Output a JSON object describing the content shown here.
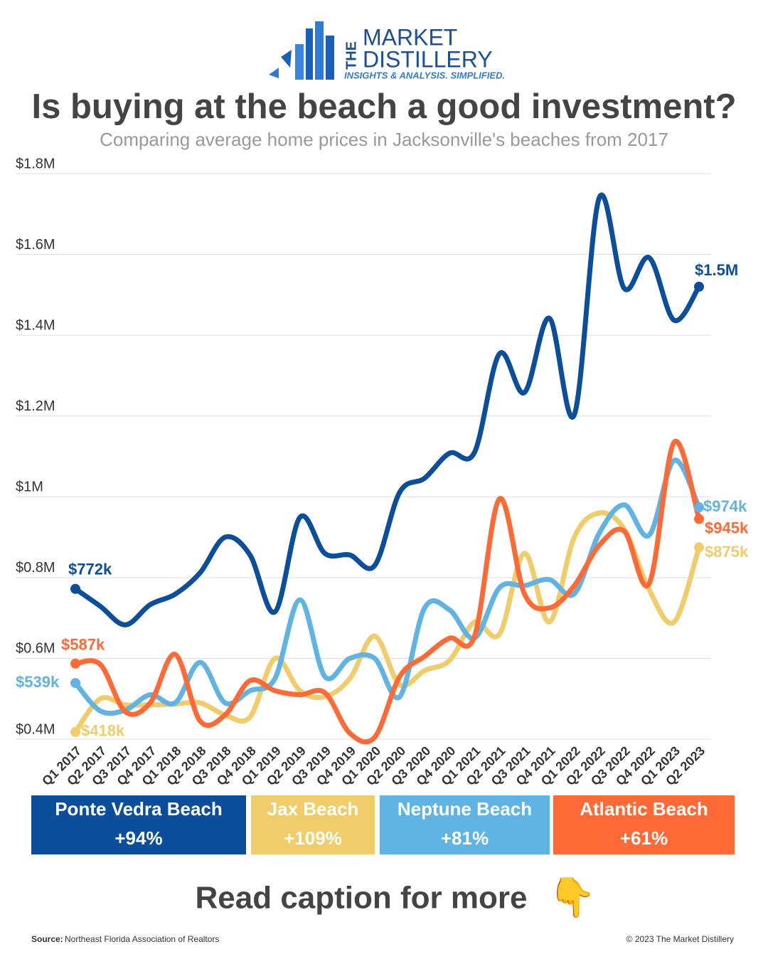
{
  "logo": {
    "the": "THE",
    "line1": "MARKET",
    "line2": "DISTILLERY",
    "tagline": "INSIGHTS & ANALYSIS. SIMPLIFIED."
  },
  "chart_data": {
    "type": "line",
    "title": "Is buying at the beach a good investment?",
    "subtitle": "Comparing average home prices in Jacksonville's beaches from 2017",
    "categories": [
      "Q1 2017",
      "Q2 2017",
      "Q3 2017",
      "Q4 2017",
      "Q1 2018",
      "Q2 2018",
      "Q3 2018",
      "Q4 2018",
      "Q1 2019",
      "Q2 2019",
      "Q3 2019",
      "Q4 2019",
      "Q1 2020",
      "Q2 2020",
      "Q3 2020",
      "Q4 2020",
      "Q1 2021",
      "Q2 2021",
      "Q3 2021",
      "Q4 2021",
      "Q1 2022",
      "Q2 2022",
      "Q3 2022",
      "Q4 2022",
      "Q1 2023",
      "Q2 2023"
    ],
    "ylim": [
      400000,
      1800000
    ],
    "yticks": [
      {
        "value": 400000,
        "label": "$0.4M"
      },
      {
        "value": 600000,
        "label": "$0.6M"
      },
      {
        "value": 800000,
        "label": "$0.8M"
      },
      {
        "value": 1000000,
        "label": "$1M"
      },
      {
        "value": 1200000,
        "label": "$1.2M"
      },
      {
        "value": 1400000,
        "label": "$1.4M"
      },
      {
        "value": 1600000,
        "label": "$1.6M"
      },
      {
        "value": 1800000,
        "label": "$1.8M"
      }
    ],
    "grid": true,
    "series": [
      {
        "name": "Ponte Vedra Beach",
        "change": "+94%",
        "color": "#0b4f9c",
        "values": [
          772000,
          729000,
          683000,
          733000,
          759000,
          812000,
          900000,
          856000,
          715000,
          949000,
          860000,
          856000,
          830000,
          1011000,
          1046000,
          1108000,
          1110000,
          1354000,
          1258000,
          1442000,
          1203000,
          1740000,
          1516000,
          1592000,
          1437000,
          1520000
        ],
        "value_labels": [
          "$772k",
          null,
          null,
          null,
          null,
          null,
          null,
          null,
          null,
          null,
          null,
          null,
          null,
          null,
          null,
          null,
          null,
          null,
          null,
          null,
          null,
          null,
          null,
          null,
          null,
          "$1.5M"
        ]
      },
      {
        "name": "Jax Beach",
        "change": "+109%",
        "color": "#f0cd6a",
        "values": [
          418000,
          500000,
          485000,
          485000,
          487000,
          490000,
          460000,
          455000,
          600000,
          520000,
          505000,
          550000,
          655000,
          535000,
          570000,
          595000,
          690000,
          660000,
          860000,
          690000,
          900000,
          960000,
          920000,
          770000,
          690000,
          875000
        ],
        "value_labels": [
          "$418k",
          null,
          null,
          null,
          null,
          null,
          null,
          null,
          null,
          null,
          null,
          null,
          null,
          null,
          null,
          null,
          null,
          null,
          null,
          null,
          null,
          null,
          null,
          null,
          null,
          "$875k"
        ]
      },
      {
        "name": "Neptune Beach",
        "change": "+81%",
        "color": "#5fb4e3",
        "values": [
          539000,
          470000,
          472000,
          510000,
          490000,
          590000,
          490000,
          520000,
          550000,
          745000,
          555000,
          600000,
          600000,
          505000,
          725000,
          720000,
          650000,
          775000,
          780000,
          795000,
          760000,
          910000,
          980000,
          905000,
          1090000,
          974000
        ],
        "value_labels": [
          "$539k",
          null,
          null,
          null,
          null,
          null,
          null,
          null,
          null,
          null,
          null,
          null,
          null,
          null,
          null,
          null,
          null,
          null,
          null,
          null,
          null,
          null,
          null,
          null,
          null,
          "$974k"
        ]
      },
      {
        "name": "Atlantic Beach",
        "change": "+61%",
        "color": "#fd6a36",
        "values": [
          587000,
          585000,
          468000,
          490000,
          610000,
          445000,
          460000,
          545000,
          520000,
          510000,
          515000,
          415000,
          405000,
          555000,
          605000,
          650000,
          655000,
          995000,
          760000,
          725000,
          780000,
          880000,
          915000,
          785000,
          1135000,
          945000
        ],
        "value_labels": [
          "$587k",
          null,
          null,
          null,
          null,
          null,
          null,
          null,
          null,
          null,
          null,
          null,
          null,
          null,
          null,
          null,
          null,
          null,
          null,
          null,
          null,
          null,
          null,
          null,
          null,
          "$945k"
        ]
      }
    ]
  },
  "footer": {
    "cta": "Read caption for more",
    "emoji": "👇",
    "source_label": "Source:",
    "source": "Northeast Florida Association of Realtors",
    "copyright": "© 2023 The Market Distillery"
  }
}
